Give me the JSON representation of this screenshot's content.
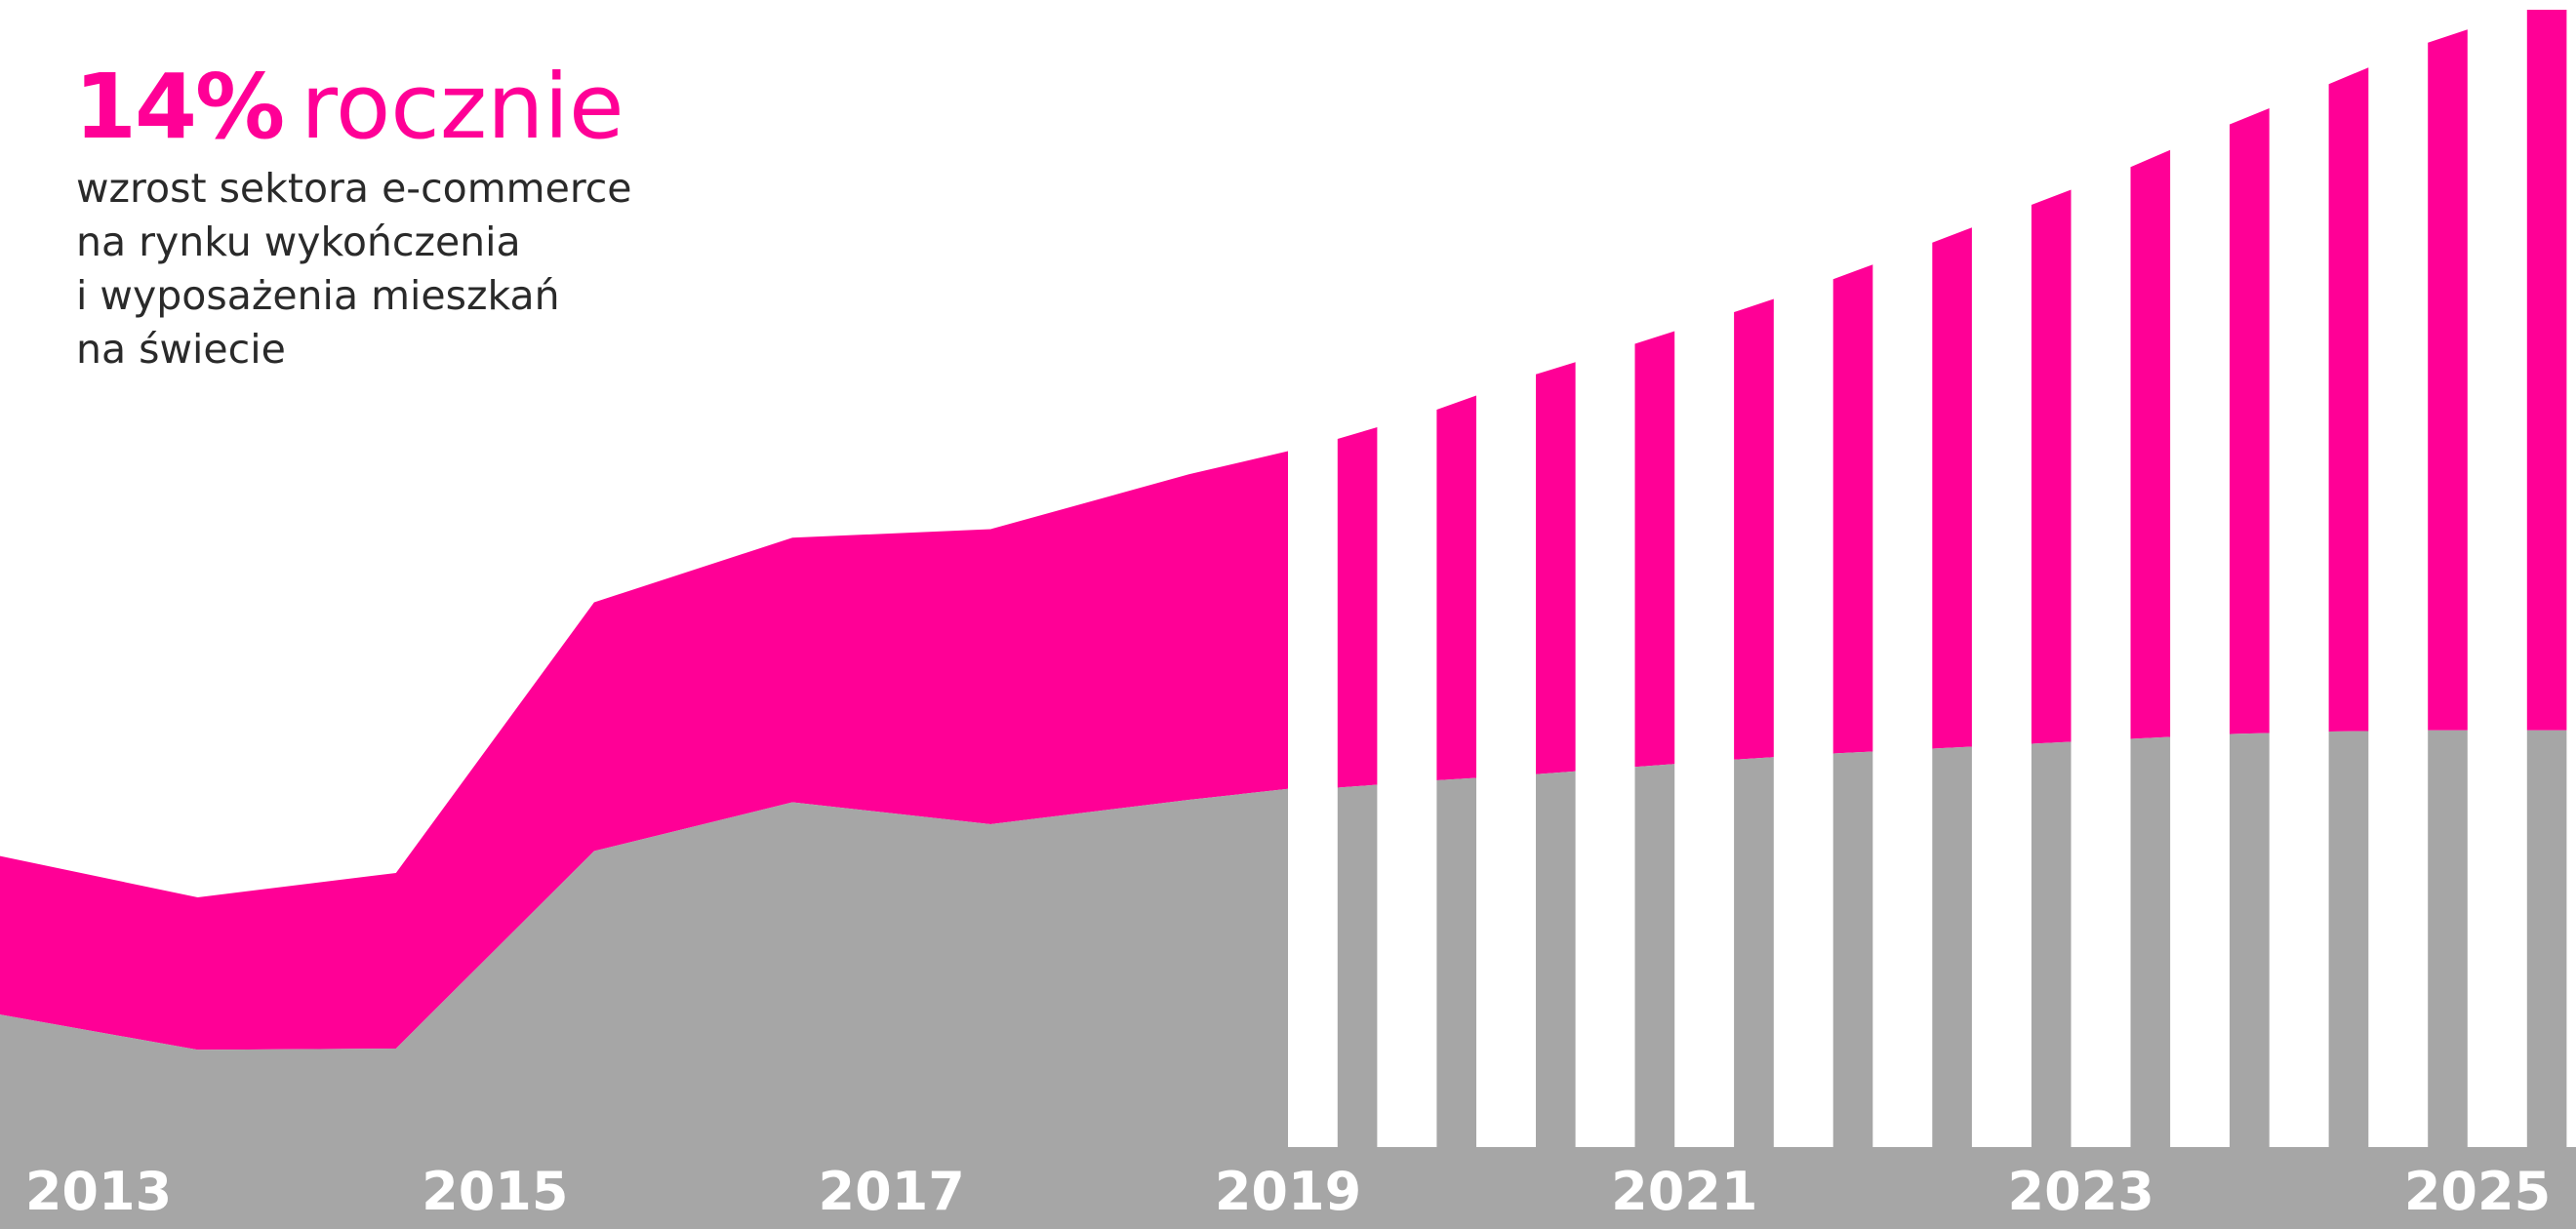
{
  "headline": {
    "value": "14%",
    "word": "rocznie"
  },
  "subtitle_lines": [
    "wzrost sektora e-commerce",
    "na rynku wykończenia",
    "i wyposażenia mieszkań",
    "na świecie"
  ],
  "colors": {
    "ecommerce": "#ff0096",
    "base": "#a6a6a6",
    "background": "#ffffff",
    "labels": "#ffffff"
  },
  "chart_data": {
    "type": "area",
    "title": "",
    "xlabel": "",
    "ylabel": "",
    "x_tick_labels": [
      "2013",
      "2015",
      "2017",
      "2019",
      "2021",
      "2023",
      "2025"
    ],
    "xlim": [
      2013,
      2025
    ],
    "ylim": [
      0,
      100
    ],
    "grid": false,
    "legend": "none",
    "forecast_from": 2019,
    "forecast_style": "vertical bars",
    "series": [
      {
        "role": "lower",
        "color": "#a6a6a6",
        "points": [
          [
            2012.5,
            17.6
          ],
          [
            2013.5,
            14.7
          ],
          [
            2014.5,
            14.8
          ],
          [
            2015.5,
            31.0
          ],
          [
            2016.5,
            35.0
          ],
          [
            2017.5,
            33.2
          ],
          [
            2018.5,
            35.2
          ],
          [
            2019,
            36.1
          ],
          [
            2019.25,
            36.2
          ],
          [
            2019.75,
            36.8
          ],
          [
            2020.25,
            37.3
          ],
          [
            2020.75,
            37.9
          ],
          [
            2021.25,
            38.5
          ],
          [
            2021.75,
            39.0
          ],
          [
            2022.25,
            39.4
          ],
          [
            2022.75,
            39.8
          ],
          [
            2023.25,
            40.2
          ],
          [
            2023.75,
            40.6
          ],
          [
            2024.25,
            40.8
          ],
          [
            2024.75,
            40.9
          ],
          [
            2025.25,
            40.9
          ],
          [
            2025.5,
            40.9
          ]
        ]
      },
      {
        "role": "upper",
        "color": "#ff0096",
        "points": [
          [
            2012.5,
            30.6
          ],
          [
            2013.5,
            27.2
          ],
          [
            2014.5,
            29.2
          ],
          [
            2015.5,
            51.4
          ],
          [
            2016.5,
            56.7
          ],
          [
            2017.5,
            57.4
          ],
          [
            2018.5,
            61.9
          ],
          [
            2019,
            63.8
          ],
          [
            2019.25,
            64.8
          ],
          [
            2019.75,
            67.2
          ],
          [
            2020.25,
            70.1
          ],
          [
            2020.75,
            72.6
          ],
          [
            2021.25,
            75.2
          ],
          [
            2021.75,
            77.9
          ],
          [
            2022.25,
            80.9
          ],
          [
            2022.75,
            84.0
          ],
          [
            2023.25,
            87.1
          ],
          [
            2023.75,
            90.6
          ],
          [
            2024.25,
            93.9
          ],
          [
            2024.75,
            97.3
          ],
          [
            2025.25,
            100.0
          ],
          [
            2025.5,
            100.0
          ]
        ]
      }
    ]
  }
}
